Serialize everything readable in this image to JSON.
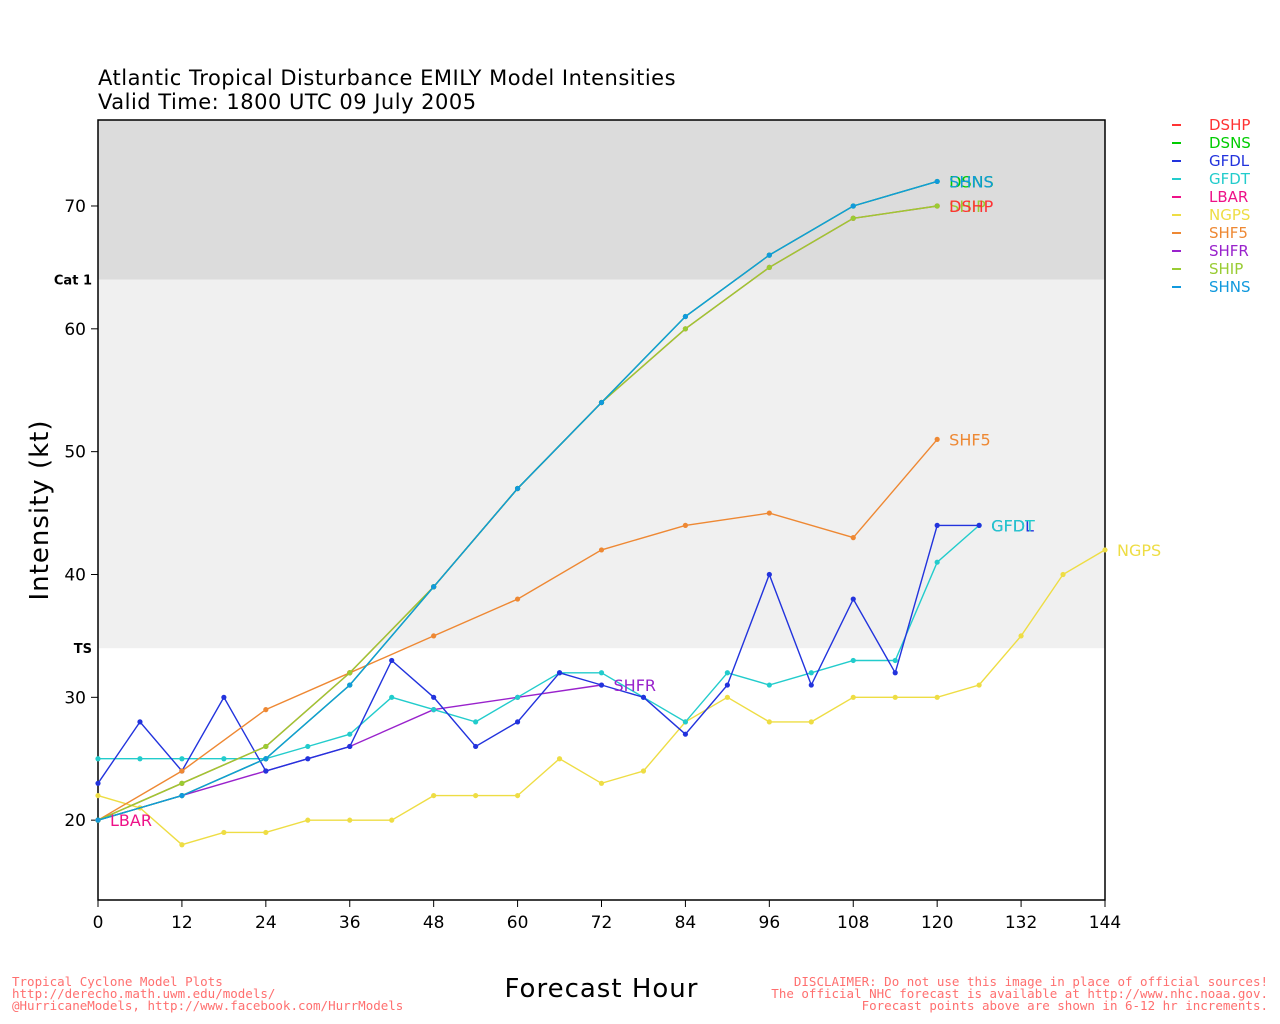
{
  "title_line1": "Atlantic Tropical Disturbance EMILY Model Intensities",
  "title_line2": "Valid Time: 1800 UTC 09 July 2005",
  "footer_left": [
    "Tropical Cyclone Model Plots",
    "http://derecho.math.uwm.edu/models/",
    "@HurricaneModels, http://www.facebook.com/HurrModels"
  ],
  "footer_right": [
    "DISCLAIMER: Do not use this image in place of official sources!",
    "The official NHC forecast is available at http://www.nhc.noaa.gov.",
    "Forecast points above are shown in 6-12 hr increments."
  ],
  "colors": {
    "cat1_band": "#dcdcdc",
    "ts_band": "#f0f0f0",
    "background": "#ffffff"
  },
  "chart_data": {
    "type": "line",
    "xlabel": "Forecast Hour",
    "ylabel": "Intensity (kt)",
    "xlim": [
      0,
      144
    ],
    "ylim": [
      13.5,
      77
    ],
    "xticks": [
      0,
      12,
      24,
      36,
      48,
      60,
      72,
      84,
      96,
      108,
      120,
      132,
      144
    ],
    "yticks": [
      20,
      30,
      40,
      50,
      60,
      70
    ],
    "thresholds": [
      {
        "label": "TS",
        "value": 34
      },
      {
        "label": "Cat 1",
        "value": 64
      }
    ],
    "legend_position": "right",
    "series": [
      {
        "name": "DSHP",
        "color": "#ff3333",
        "x": [
          0,
          12,
          24,
          36,
          48,
          60,
          72,
          84,
          96,
          108,
          120
        ],
        "y": [
          20,
          23,
          26,
          32,
          39,
          47,
          54,
          60,
          65,
          69,
          70
        ]
      },
      {
        "name": "DSNS",
        "color": "#00cc00",
        "x": [
          0,
          12,
          24,
          36,
          48,
          60,
          72,
          84,
          96,
          108,
          120
        ],
        "y": [
          20,
          22,
          25,
          31,
          39,
          47,
          54,
          61,
          66,
          70,
          72
        ]
      },
      {
        "name": "GFDL",
        "color": "#2233dd",
        "x": [
          0,
          6,
          12,
          18,
          24,
          30,
          36,
          42,
          48,
          54,
          60,
          66,
          72,
          78,
          84,
          90,
          96,
          102,
          108,
          114,
          120,
          126
        ],
        "y": [
          23,
          28,
          24,
          30,
          24,
          25,
          26,
          33,
          30,
          26,
          28,
          32,
          31,
          30,
          27,
          31,
          40,
          31,
          38,
          32,
          44,
          44
        ]
      },
      {
        "name": "GFDT",
        "color": "#22cccc",
        "x": [
          0,
          6,
          12,
          18,
          24,
          30,
          36,
          42,
          48,
          54,
          60,
          66,
          72,
          78,
          84,
          90,
          96,
          102,
          108,
          114,
          120,
          126
        ],
        "y": [
          25,
          25,
          25,
          25,
          25,
          26,
          27,
          30,
          29,
          28,
          30,
          32,
          32,
          30,
          28,
          32,
          31,
          32,
          33,
          33,
          41,
          44
        ]
      },
      {
        "name": "LBAR",
        "color": "#ee1188",
        "x": [
          0
        ],
        "y": [
          20
        ]
      },
      {
        "name": "NGPS",
        "color": "#eedd44",
        "x": [
          0,
          6,
          12,
          18,
          24,
          30,
          36,
          42,
          48,
          54,
          60,
          66,
          72,
          78,
          84,
          90,
          96,
          102,
          108,
          114,
          120,
          126,
          132,
          138,
          144
        ],
        "y": [
          22,
          21,
          18,
          19,
          19,
          20,
          20,
          20,
          22,
          22,
          22,
          25,
          23,
          24,
          28,
          30,
          28,
          28,
          30,
          30,
          30,
          31,
          35,
          40,
          42
        ]
      },
      {
        "name": "SHF5",
        "color": "#ee8833",
        "x": [
          0,
          12,
          24,
          36,
          48,
          60,
          72,
          84,
          96,
          108,
          120
        ],
        "y": [
          20,
          24,
          29,
          32,
          35,
          38,
          42,
          44,
          45,
          43,
          51
        ]
      },
      {
        "name": "SHFR",
        "color": "#9922cc",
        "x": [
          0,
          12,
          24,
          36,
          48,
          60,
          72
        ],
        "y": [
          20,
          22,
          24,
          26,
          29,
          30,
          31
        ]
      },
      {
        "name": "SHIP",
        "color": "#99cc33",
        "x": [
          0,
          12,
          24,
          36,
          48,
          60,
          72,
          84,
          96,
          108,
          120
        ],
        "y": [
          20,
          23,
          26,
          32,
          39,
          47,
          54,
          60,
          65,
          69,
          70
        ]
      },
      {
        "name": "SHNS",
        "color": "#1199dd",
        "x": [
          0,
          12,
          24,
          36,
          48,
          60,
          72,
          84,
          96,
          108,
          120
        ],
        "y": [
          20,
          22,
          25,
          31,
          39,
          47,
          54,
          61,
          66,
          70,
          72
        ]
      }
    ],
    "end_labels": [
      {
        "text": "DSNS",
        "series": "DSNS"
      },
      {
        "text": "SHNS",
        "series": "SHNS"
      },
      {
        "text": "SHIP",
        "series": "SHIP"
      },
      {
        "text": "DSHP",
        "series": "DSHP"
      },
      {
        "text": "SHF5",
        "series": "SHF5"
      },
      {
        "text": "GFDL",
        "series": "GFDL"
      },
      {
        "text": "GFDT",
        "series": "GFDT"
      },
      {
        "text": "NGPS",
        "series": "NGPS"
      },
      {
        "text": "SHFR",
        "series": "SHFR"
      },
      {
        "text": "LBAR",
        "series": "LBAR"
      }
    ]
  }
}
